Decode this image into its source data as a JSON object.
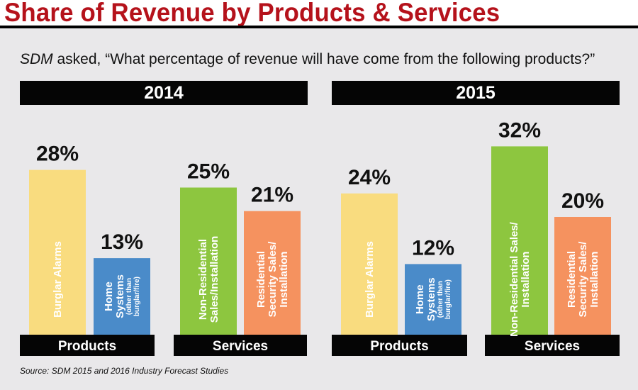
{
  "title": "Share of Revenue by Products & Services",
  "question": {
    "italic_prefix": "SDM",
    "text": " asked, “What percentage of revenue will have come from the following products?”"
  },
  "source": "Source: SDM 2015 and  2016 Industry Forecast Studies",
  "chart_data": {
    "type": "bar",
    "unit": "%",
    "panels": [
      {
        "year": "2014",
        "groups": [
          {
            "name": "Products",
            "bars": [
              {
                "label": [
                  "Burglar Alarms"
                ],
                "sublabel": [],
                "value": 28,
                "color": "#f9dc7f"
              },
              {
                "label": [
                  "Home",
                  "Systems"
                ],
                "sublabel": [
                  "(other than",
                  "burglar/fire)"
                ],
                "value": 13,
                "color": "#4a8bc9"
              }
            ]
          },
          {
            "name": "Services",
            "bars": [
              {
                "label": [
                  "Non-Residential",
                  "Sales/Installation"
                ],
                "sublabel": [],
                "value": 25,
                "color": "#8dc63f"
              },
              {
                "label": [
                  "Residential",
                  "Security Sales/",
                  "Installation"
                ],
                "sublabel": [],
                "value": 21,
                "color": "#f5925f"
              }
            ]
          }
        ]
      },
      {
        "year": "2015",
        "groups": [
          {
            "name": "Products",
            "bars": [
              {
                "label": [
                  "Burglar Alarms"
                ],
                "sublabel": [],
                "value": 24,
                "color": "#f9dc7f"
              },
              {
                "label": [
                  "Home",
                  "Systems"
                ],
                "sublabel": [
                  "(other than",
                  "burglar/fire)"
                ],
                "value": 12,
                "color": "#4a8bc9"
              }
            ]
          },
          {
            "name": "Services",
            "bars": [
              {
                "label": [
                  "Non-Residential Sales/",
                  "Installation"
                ],
                "sublabel": [],
                "value": 32,
                "color": "#8dc63f"
              },
              {
                "label": [
                  "Residential",
                  "Security Sales/",
                  "Installation"
                ],
                "sublabel": [],
                "value": 20,
                "color": "#f5925f"
              }
            ]
          }
        ]
      }
    ]
  }
}
